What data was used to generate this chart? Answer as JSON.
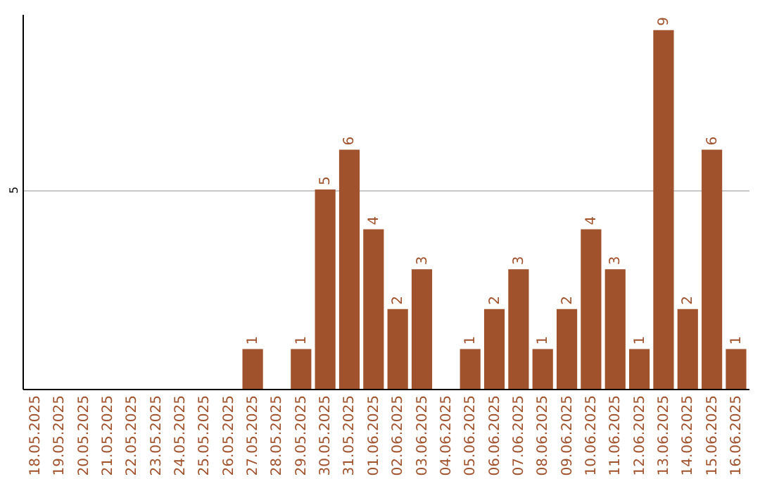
{
  "chart_data": {
    "type": "bar",
    "categories": [
      "18.05.2025",
      "19.05.2025",
      "20.05.2025",
      "21.05.2025",
      "22.05.2025",
      "23.05.2025",
      "24.05.2025",
      "25.05.2025",
      "26.05.2025",
      "27.05.2025",
      "28.05.2025",
      "29.05.2025",
      "30.05.2025",
      "31.05.2025",
      "01.06.2025",
      "02.06.2025",
      "03.06.2025",
      "04.06.2025",
      "05.06.2025",
      "06.06.2025",
      "07.06.2025",
      "08.06.2025",
      "09.06.2025",
      "10.06.2025",
      "11.06.2025",
      "12.06.2025",
      "13.06.2025",
      "14.06.2025",
      "15.06.2025",
      "16.06.2025"
    ],
    "values": [
      0,
      0,
      0,
      0,
      0,
      0,
      0,
      0,
      0,
      1,
      0,
      1,
      5,
      6,
      4,
      2,
      3,
      0,
      1,
      2,
      3,
      1,
      2,
      4,
      3,
      1,
      9,
      2,
      6,
      1
    ],
    "value_labels": [
      null,
      null,
      null,
      null,
      null,
      null,
      null,
      null,
      null,
      "1",
      null,
      "1",
      "5",
      "6",
      "4",
      "2",
      "3",
      null,
      "1",
      "2",
      "3",
      "1",
      "2",
      "4",
      "3",
      "1",
      "9",
      "2",
      "6",
      "1"
    ],
    "color": "#a0522d",
    "ylim": [
      0,
      9.4
    ],
    "yticks": [
      5
    ],
    "grid": "y"
  }
}
